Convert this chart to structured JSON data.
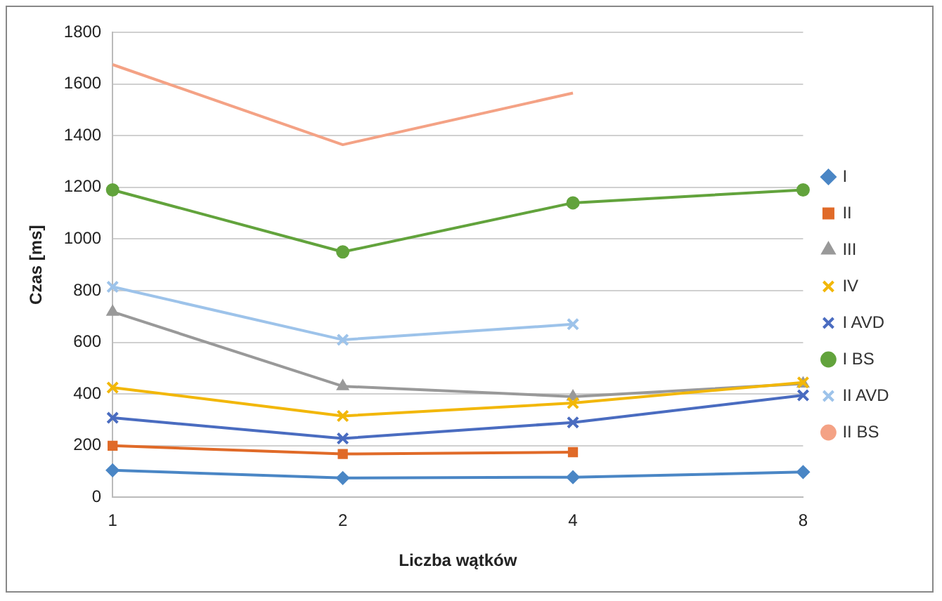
{
  "chart_data": {
    "type": "line",
    "xlabel": "Liczba wątków",
    "ylabel": "Czas [ms]",
    "categories": [
      "1",
      "2",
      "4",
      "8"
    ],
    "ylim": [
      0,
      1800
    ],
    "yticks": [
      0,
      200,
      400,
      600,
      800,
      1000,
      1200,
      1400,
      1600,
      1800
    ],
    "grid": "y",
    "legend": "right",
    "line_style": "solid",
    "series": [
      {
        "name": "I",
        "color": "#4a86c5",
        "marker": "diamond",
        "values": [
          105,
          75,
          78,
          98
        ]
      },
      {
        "name": "II",
        "color": "#e06a28",
        "marker": "square",
        "values": [
          200,
          168,
          175,
          null
        ]
      },
      {
        "name": "III",
        "color": "#999999",
        "marker": "triangle",
        "values": [
          718,
          430,
          390,
          440
        ]
      },
      {
        "name": "IV",
        "color": "#f2b708",
        "marker": "cross",
        "values": [
          425,
          315,
          365,
          445
        ]
      },
      {
        "name": "I AVD",
        "color": "#4a6cc0",
        "marker": "cross",
        "values": [
          308,
          228,
          290,
          395
        ]
      },
      {
        "name": "I BS",
        "color": "#62a33c",
        "marker": "circle",
        "values": [
          1190,
          950,
          1140,
          1190
        ]
      },
      {
        "name": "II AVD",
        "color": "#9dc3ea",
        "marker": "cross",
        "values": [
          815,
          610,
          670,
          null
        ]
      },
      {
        "name": "II BS",
        "color": "#f4a285",
        "marker": "none",
        "values": [
          1675,
          1365,
          1565,
          null
        ]
      }
    ]
  }
}
